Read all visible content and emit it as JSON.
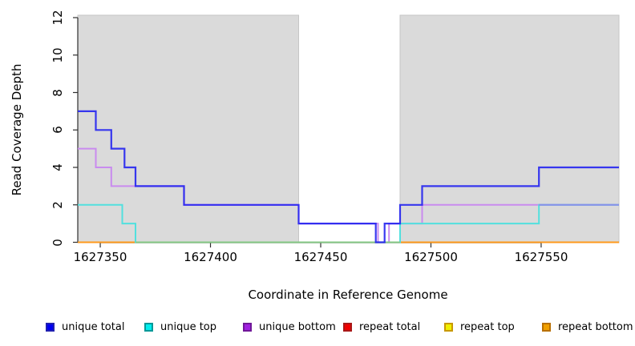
{
  "axes": {
    "xlabel": "Coordinate in Reference Genome",
    "ylabel": "Read Coverage Depth",
    "x_tick_labels": [
      "1627350",
      "1627400",
      "1627450",
      "1627500",
      "1627550"
    ],
    "y_tick_labels": [
      "0",
      "2",
      "4",
      "6",
      "8",
      "10",
      "12"
    ]
  },
  "legend": {
    "items": [
      {
        "label": "unique total",
        "color": "#0000f0",
        "border": "#2020b0"
      },
      {
        "label": "unique top",
        "color": "#00eeee",
        "border": "#009898"
      },
      {
        "label": "unique bottom",
        "color": "#a020e0",
        "border": "#701898"
      },
      {
        "label": "repeat total",
        "color": "#f00000",
        "border": "#a81818"
      },
      {
        "label": "repeat top",
        "color": "#f0f000",
        "border": "#c89800"
      },
      {
        "label": "repeat bottom",
        "color": "#f0a000",
        "border": "#b87000"
      }
    ]
  },
  "chart_data": {
    "type": "line",
    "step_mode": "after",
    "title": "",
    "xlabel": "Coordinate in Reference Genome",
    "ylabel": "Read Coverage Depth",
    "xlim": [
      1627339.8,
      1627585.3
    ],
    "ylim": [
      0,
      12
    ],
    "x_ticks": [
      1627350,
      1627400,
      1627450,
      1627500,
      1627550
    ],
    "y_ticks": [
      0,
      2,
      4,
      6,
      8,
      10,
      12
    ],
    "grid": false,
    "legend_position": "bottom",
    "background_color": "#ffffff",
    "shaded_region_color": "#dadada",
    "shaded_region_border": "#c6c6c6",
    "background_regions": [
      {
        "name": "repeat-masked-left",
        "x0": 1627339.8,
        "x1": 1627440
      },
      {
        "name": "repeat-masked-right",
        "x0": 1627486,
        "x1": 1627585.3
      }
    ],
    "series": [
      {
        "name": "unique total",
        "color": "#2424f0",
        "width": 2.2,
        "opacity": 0.9,
        "points": [
          [
            1627339.8,
            7
          ],
          [
            1627348,
            6
          ],
          [
            1627355,
            5
          ],
          [
            1627361,
            4
          ],
          [
            1627366,
            3
          ],
          [
            1627388,
            2
          ],
          [
            1627440,
            1
          ],
          [
            1627475,
            0
          ],
          [
            1627479,
            1
          ],
          [
            1627486,
            2
          ],
          [
            1627496,
            3
          ],
          [
            1627549,
            4
          ],
          [
            1627585.3,
            4
          ]
        ]
      },
      {
        "name": "unique top",
        "color": "#52e0de",
        "width": 2,
        "opacity": 1,
        "points": [
          [
            1627339.8,
            2
          ],
          [
            1627360,
            1
          ],
          [
            1627366,
            0
          ],
          [
            1627486,
            1
          ],
          [
            1627549,
            2
          ],
          [
            1627585.3,
            2
          ]
        ]
      },
      {
        "name": "unique bottom",
        "color": "#c98bef",
        "width": 2,
        "opacity": 1,
        "points": [
          [
            1627339.8,
            5
          ],
          [
            1627348,
            4
          ],
          [
            1627355,
            3
          ],
          [
            1627388,
            2
          ],
          [
            1627440,
            1
          ],
          [
            1627476,
            0
          ],
          [
            1627481,
            1
          ],
          [
            1627496,
            2
          ],
          [
            1627585.3,
            2
          ]
        ]
      },
      {
        "name": "repeat total",
        "color": "#cc0000",
        "width": 2,
        "opacity": 1,
        "points": [
          [
            1627339.8,
            0
          ],
          [
            1627585.3,
            0
          ]
        ]
      },
      {
        "name": "repeat top",
        "color": "#eeee00",
        "width": 2,
        "opacity": 1,
        "points": [
          [
            1627339.8,
            0
          ],
          [
            1627585.3,
            0
          ]
        ]
      },
      {
        "name": "repeat bottom",
        "color": "#ff9a1c",
        "width": 2,
        "opacity": 1,
        "points": [
          [
            1627339.8,
            0
          ],
          [
            1627585.3,
            0
          ]
        ]
      }
    ],
    "draw_order": [
      "repeat total",
      "repeat top",
      "repeat bottom",
      "unique bottom",
      "unique top",
      "unique total"
    ],
    "overlap_segments": [
      {
        "name": "zero-line-overlap-green",
        "color": "#86c986",
        "y": 0,
        "x0": 1627366,
        "x1": 1627486,
        "width": 2
      },
      {
        "name": "depth2-overlap-periwinkle",
        "color": "#8790e8",
        "y": 2,
        "x0": 1627549,
        "x1": 1627585.3,
        "width": 2
      }
    ]
  }
}
